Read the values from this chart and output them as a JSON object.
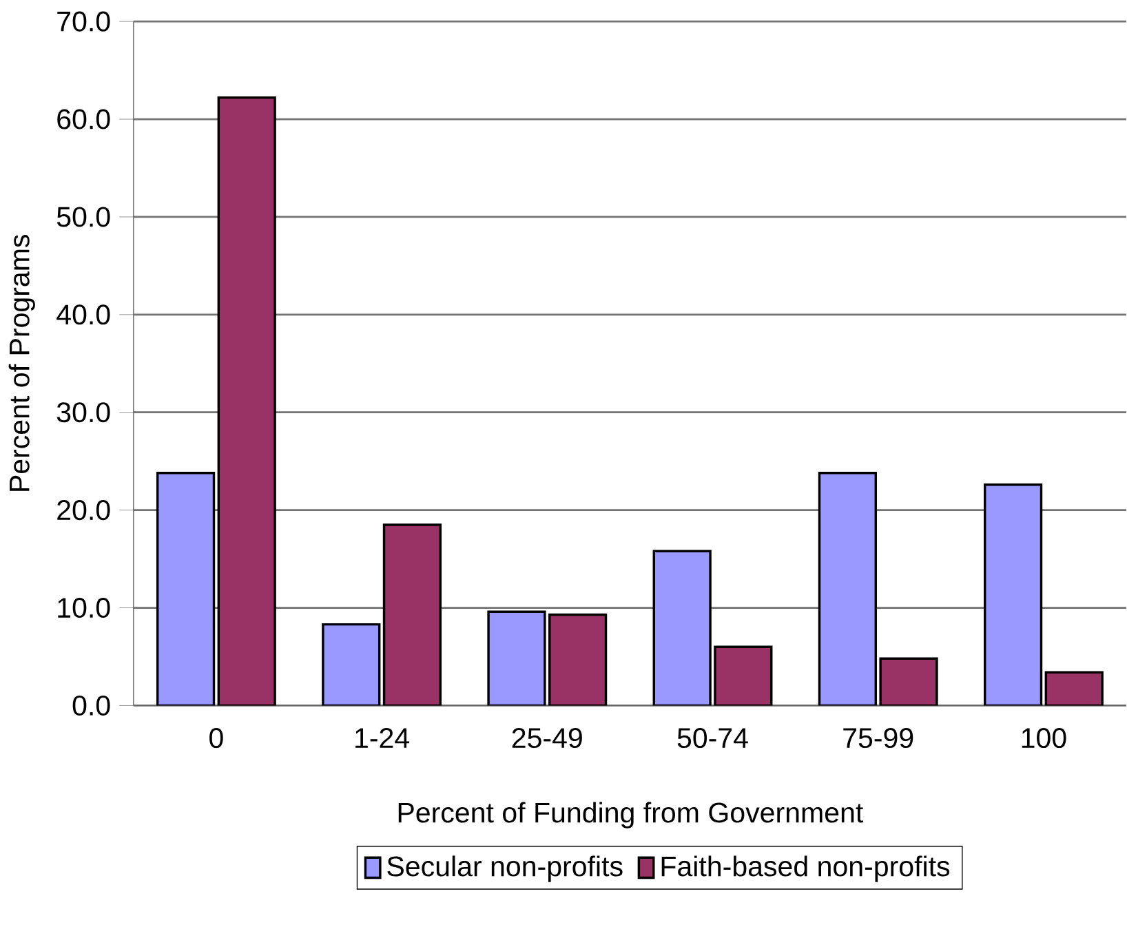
{
  "chart_data": {
    "type": "bar",
    "xlabel": "Percent of Funding from Government",
    "ylabel": "Percent of Programs",
    "categories": [
      "0",
      "1-24",
      "25-49",
      "50-74",
      "75-99",
      "100"
    ],
    "series": [
      {
        "name": "Secular non-profits",
        "color": "#9999ff",
        "values": [
          23.8,
          8.3,
          9.6,
          15.8,
          23.8,
          22.6
        ]
      },
      {
        "name": "Faith-based non-profits",
        "color": "#993366",
        "values": [
          62.2,
          18.5,
          9.3,
          6.0,
          4.8,
          3.4
        ]
      }
    ],
    "ylim": [
      0,
      70
    ],
    "yticks": [
      {
        "value": 0,
        "label": "0.0"
      },
      {
        "value": 10,
        "label": "10.0"
      },
      {
        "value": 20,
        "label": "20.0"
      },
      {
        "value": 30,
        "label": "30.0"
      },
      {
        "value": 40,
        "label": "40.0"
      },
      {
        "value": 50,
        "label": "50.0"
      },
      {
        "value": 60,
        "label": "60.0"
      },
      {
        "value": 70,
        "label": "70.0"
      }
    ],
    "grid": "y",
    "legend": "bottom"
  }
}
